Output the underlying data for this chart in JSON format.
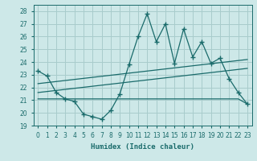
{
  "xlabel": "Humidex (Indice chaleur)",
  "bg_color": "#cde8e8",
  "grid_color": "#a8cccc",
  "line_color": "#1a6b6b",
  "xlim": [
    -0.5,
    23.5
  ],
  "ylim": [
    19,
    28.5
  ],
  "yticks": [
    19,
    20,
    21,
    22,
    23,
    24,
    25,
    26,
    27,
    28
  ],
  "xticks": [
    0,
    1,
    2,
    3,
    4,
    5,
    6,
    7,
    8,
    9,
    10,
    11,
    12,
    13,
    14,
    15,
    16,
    17,
    18,
    19,
    20,
    21,
    22,
    23
  ],
  "main_x": [
    0,
    1,
    2,
    3,
    4,
    5,
    6,
    7,
    8,
    9,
    10,
    11,
    12,
    13,
    14,
    15,
    16,
    17,
    18,
    19,
    20,
    21,
    22,
    23
  ],
  "main_y": [
    23.3,
    22.9,
    21.6,
    21.1,
    20.9,
    19.9,
    19.7,
    19.5,
    20.2,
    21.5,
    23.8,
    26.0,
    27.8,
    25.6,
    27.0,
    23.9,
    26.6,
    24.4,
    25.6,
    23.9,
    24.3,
    22.7,
    21.6,
    20.7
  ],
  "trend1_x": [
    0,
    23
  ],
  "trend1_y": [
    22.3,
    24.2
  ],
  "trend2_x": [
    0,
    23
  ],
  "trend2_y": [
    21.6,
    23.5
  ],
  "flat_x": [
    0,
    9,
    10,
    11,
    12,
    13,
    14,
    15,
    16,
    17,
    18,
    19,
    20,
    21,
    22,
    23
  ],
  "flat_y": [
    21.1,
    21.1,
    21.1,
    21.1,
    21.1,
    21.1,
    21.1,
    21.1,
    21.1,
    21.1,
    21.1,
    21.1,
    21.1,
    21.1,
    21.1,
    20.7
  ]
}
